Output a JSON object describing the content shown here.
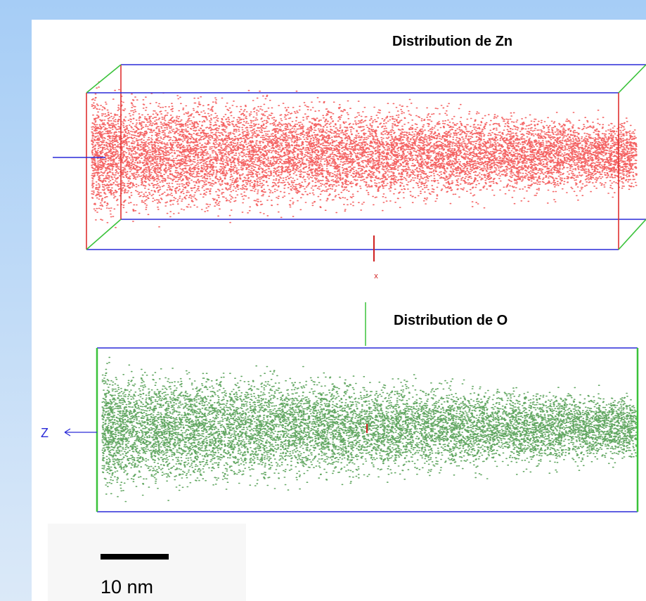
{
  "title_zn": "Distribution de Zn",
  "title_o": "Distribution de O",
  "axis_z": "Z",
  "axis_x": "x",
  "scale_bar": "10 nm"
}
